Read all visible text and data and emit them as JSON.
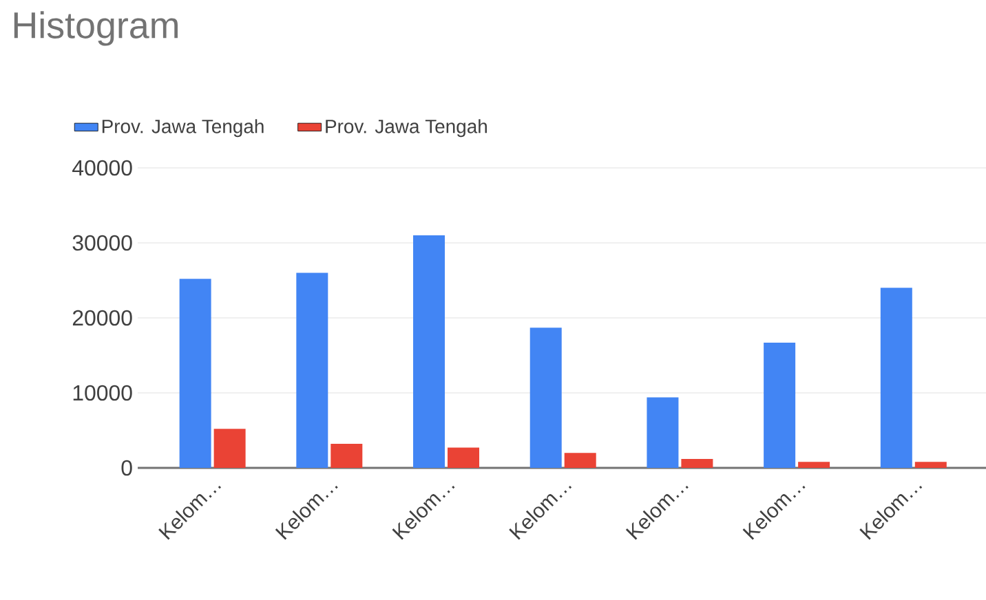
{
  "chart_data": {
    "type": "bar",
    "title": "Histogram",
    "categories": [
      "Kelom…",
      "Kelom…",
      "Kelom…",
      "Kelom…",
      "Kelom…",
      "Kelom…",
      "Kelom…"
    ],
    "series": [
      {
        "name": "Prov. Jawa Tengah",
        "color": "#4285f4",
        "values": [
          25200,
          26000,
          31000,
          18700,
          9400,
          16700,
          24000
        ]
      },
      {
        "name": "Prov. Jawa Tengah",
        "color": "#ea4335",
        "values": [
          5200,
          3200,
          2700,
          2000,
          1200,
          800,
          800
        ]
      }
    ],
    "ylim": [
      0,
      40000
    ],
    "yticks": [
      0,
      10000,
      20000,
      30000,
      40000
    ],
    "grid": "y",
    "legend": "top"
  }
}
